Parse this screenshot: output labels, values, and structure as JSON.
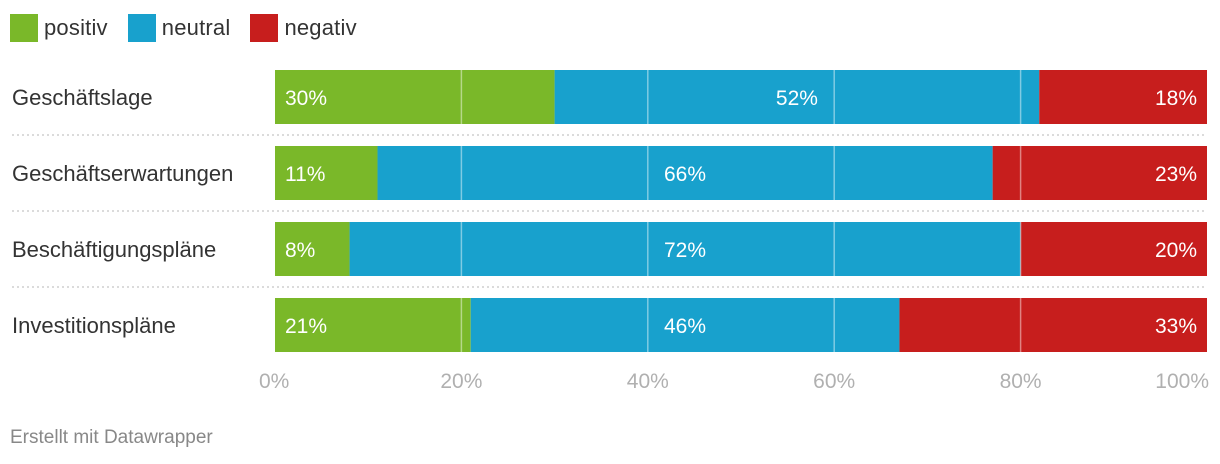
{
  "legend": [
    {
      "label": "positiv",
      "color": "#7ab829"
    },
    {
      "label": "neutral",
      "color": "#18a1cd"
    },
    {
      "label": "negativ",
      "color": "#c71e1d"
    }
  ],
  "footer": {
    "text": "Erstellt mit Datawrapper"
  },
  "chart_data": {
    "type": "bar",
    "orientation": "horizontal",
    "stacked": true,
    "categories": [
      "Geschäftslage",
      "Geschäftserwartungen",
      "Beschäftigungspläne",
      "Investitionspläne"
    ],
    "series": [
      {
        "name": "positiv",
        "color": "#7ab829",
        "values": [
          30,
          11,
          8,
          21
        ],
        "labels": [
          "30%",
          "11%",
          "8%",
          "21%"
        ]
      },
      {
        "name": "neutral",
        "color": "#18a1cd",
        "values": [
          52,
          66,
          72,
          46
        ],
        "labels": [
          "52%",
          "66%",
          "72%",
          "46%"
        ]
      },
      {
        "name": "negativ",
        "color": "#c71e1d",
        "values": [
          18,
          23,
          20,
          33
        ],
        "labels": [
          "18%",
          "23%",
          "20%",
          "33%"
        ]
      }
    ],
    "xlim": [
      0,
      100
    ],
    "x_ticks": [
      0,
      20,
      40,
      60,
      80,
      100
    ],
    "x_tick_labels": [
      "0%",
      "20%",
      "40%",
      "60%",
      "80%",
      "100%"
    ],
    "grid": true,
    "legend_position": "top-left"
  }
}
